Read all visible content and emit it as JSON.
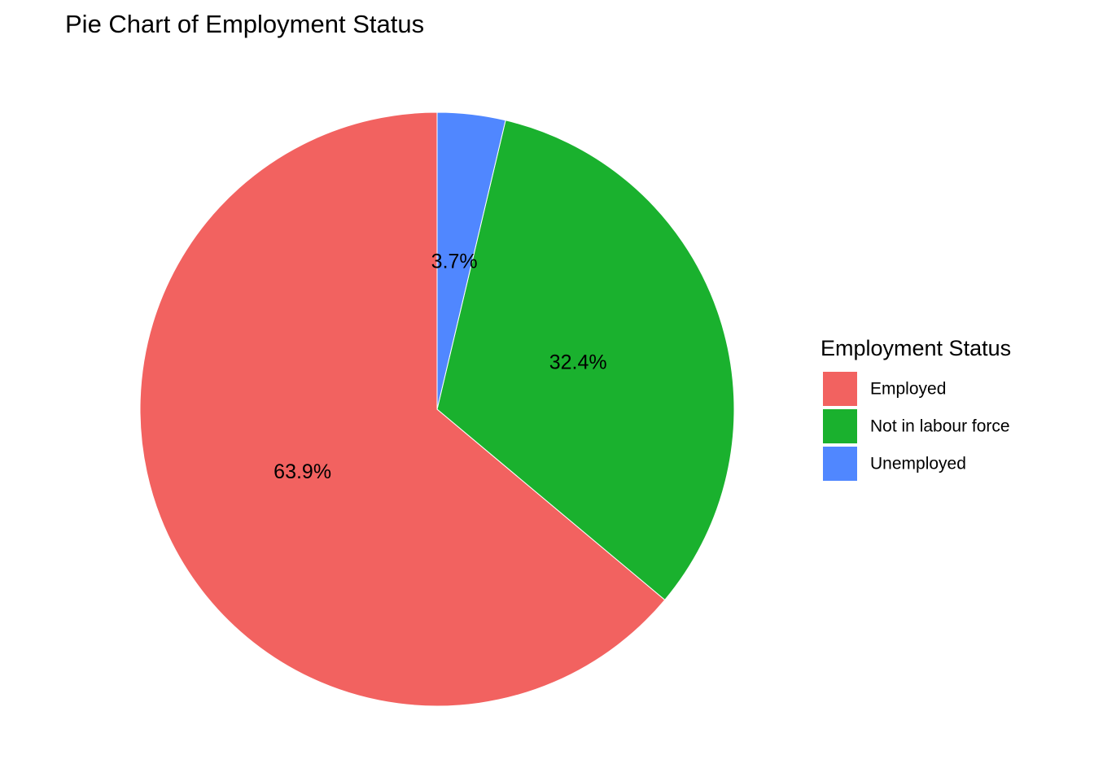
{
  "chart_data": {
    "type": "pie",
    "title": "Pie Chart of Employment Status",
    "legend_title": "Employment Status",
    "legend_position": "right",
    "slices": [
      {
        "label": "Employed",
        "value": 63.9,
        "display": "63.9%",
        "color": "#F26260"
      },
      {
        "label": "Not in labour force",
        "value": 32.4,
        "display": "32.4%",
        "color": "#1AB12E"
      },
      {
        "label": "Unemployed",
        "value": 3.7,
        "display": "3.7%",
        "color": "#5087FF"
      }
    ],
    "direction": "counterclockwise",
    "start": "top"
  }
}
